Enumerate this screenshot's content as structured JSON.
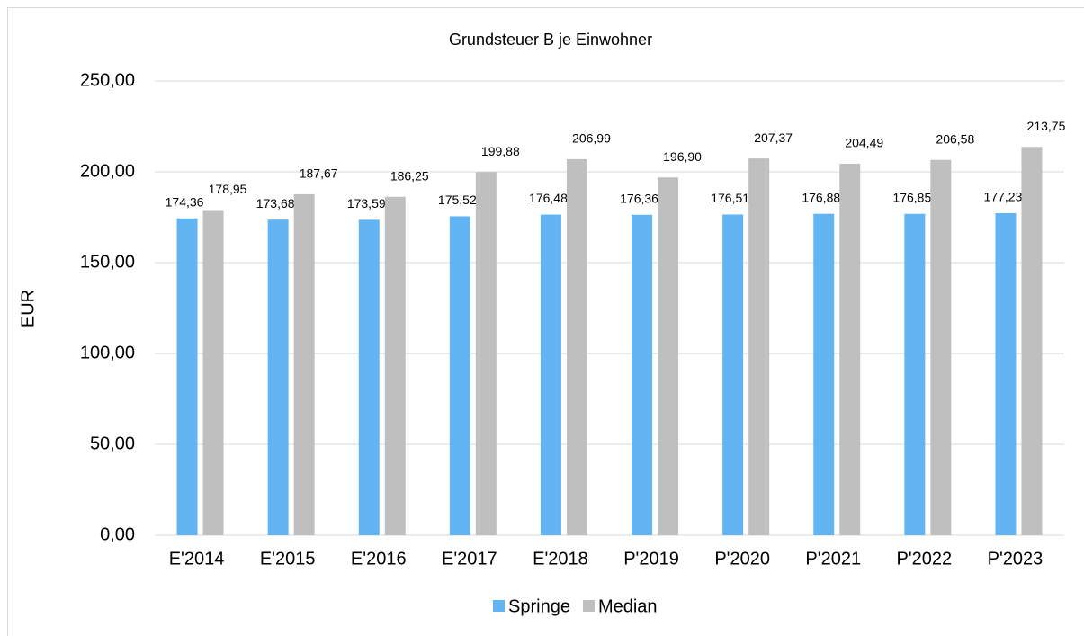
{
  "chart_data": {
    "type": "bar",
    "title": "Grundsteuer B je Einwohner",
    "ylabel": "EUR",
    "categories": [
      "E'2014",
      "E'2015",
      "E'2016",
      "E'2017",
      "E'2018",
      "P'2019",
      "P'2020",
      "P'2021",
      "P'2022",
      "P'2023"
    ],
    "series": [
      {
        "name": "Springe",
        "color": "#63b4f3",
        "values": [
          174.36,
          173.68,
          173.59,
          175.52,
          176.48,
          176.36,
          176.51,
          176.88,
          176.85,
          177.23
        ],
        "value_labels": [
          "174,36",
          "173,68",
          "173,59",
          "175,52",
          "176,48",
          "176,36",
          "176,51",
          "176,88",
          "176,85",
          "177,23"
        ]
      },
      {
        "name": "Median",
        "color": "#bfbfbf",
        "values": [
          178.95,
          187.67,
          186.25,
          199.88,
          206.99,
          196.9,
          207.37,
          204.49,
          206.58,
          213.75
        ],
        "value_labels": [
          "178,95",
          "187,67",
          "186,25",
          "199,88",
          "206,99",
          "196,90",
          "207,37",
          "204,49",
          "206,58",
          "213,75"
        ]
      }
    ],
    "ylim": [
      0,
      250
    ],
    "yticks": [
      {
        "value": 0,
        "label": "0,00"
      },
      {
        "value": 50,
        "label": "50,00"
      },
      {
        "value": 100,
        "label": "100,00"
      },
      {
        "value": 150,
        "label": "150,00"
      },
      {
        "value": 200,
        "label": "200,00"
      },
      {
        "value": 250,
        "label": "250,00"
      }
    ],
    "grid": true,
    "legend": "bottom"
  }
}
